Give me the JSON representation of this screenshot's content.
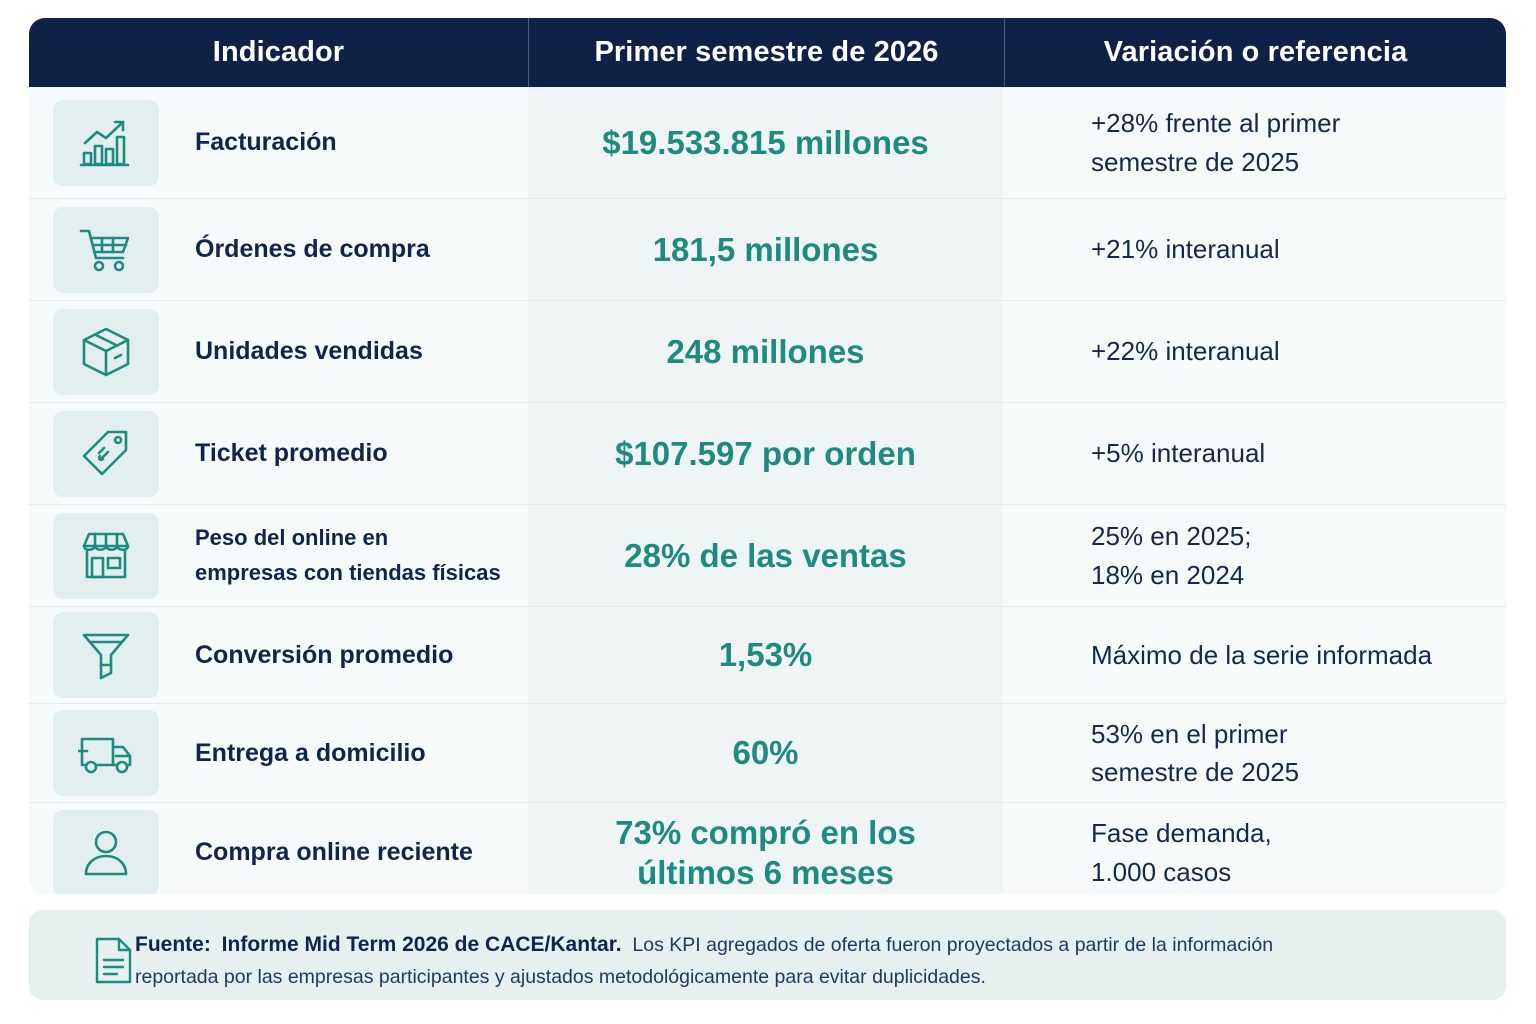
{
  "header": {
    "col1": "Indicador",
    "col2": "Primer semestre de 2026",
    "col3": "Variación o referencia"
  },
  "rows": [
    {
      "icon": "bar-chart-trend-up-icon",
      "indicator": "Facturación",
      "value": "$19.533.815 millones",
      "reference": [
        "+28%  frente al primer",
        "semestre de 2025"
      ]
    },
    {
      "icon": "shopping-cart-icon",
      "indicator": "Órdenes de compra",
      "value": "181,5 millones",
      "reference": [
        "+21%  interanual"
      ]
    },
    {
      "icon": "box-package-icon",
      "indicator": "Unidades vendidas",
      "value": "248 millones",
      "reference": [
        "+22%  interanual"
      ]
    },
    {
      "icon": "price-tag-icon",
      "indicator": "Ticket promedio",
      "value": "$107.597 por orden",
      "reference": [
        "+5%  interanual"
      ]
    },
    {
      "icon": "storefront-icon",
      "indicator": [
        "Peso del online en",
        "empresas con tiendas físicas"
      ],
      "value": "28% de las ventas",
      "reference": [
        "25%  en 2025;",
        "18%  en 2024"
      ]
    },
    {
      "icon": "funnel-icon",
      "indicator": "Conversión promedio",
      "value": "1,53%",
      "reference": [
        "Máximo de la serie informada"
      ]
    },
    {
      "icon": "delivery-truck-icon",
      "indicator": "Entrega a domicilio",
      "value": "60%",
      "reference": [
        "53%  en el primer",
        "semestre de 2025"
      ]
    },
    {
      "icon": "user-icon",
      "indicator": "Compra online reciente",
      "value": [
        "73% compró en los",
        "últimos 6 meses"
      ],
      "reference": [
        "Fase demanda,",
        "1.000 casos"
      ]
    }
  ],
  "note": {
    "icon": "document-icon",
    "label": "Fuente:",
    "source": "Informe Mid Term 2026 de CACE/Kantar.",
    "text_line1": "Los KPI agregados de oferta fueron proyectados a partir de la información",
    "text_line2": "reportada por las empresas participantes y ajustados metodológicamente para evitar duplicidades."
  },
  "colors": {
    "header_bg": "#0e2247",
    "accent_teal": "#1f8a80",
    "icon_bg": "#e3efee",
    "note_bg": "#e5f0ef"
  }
}
